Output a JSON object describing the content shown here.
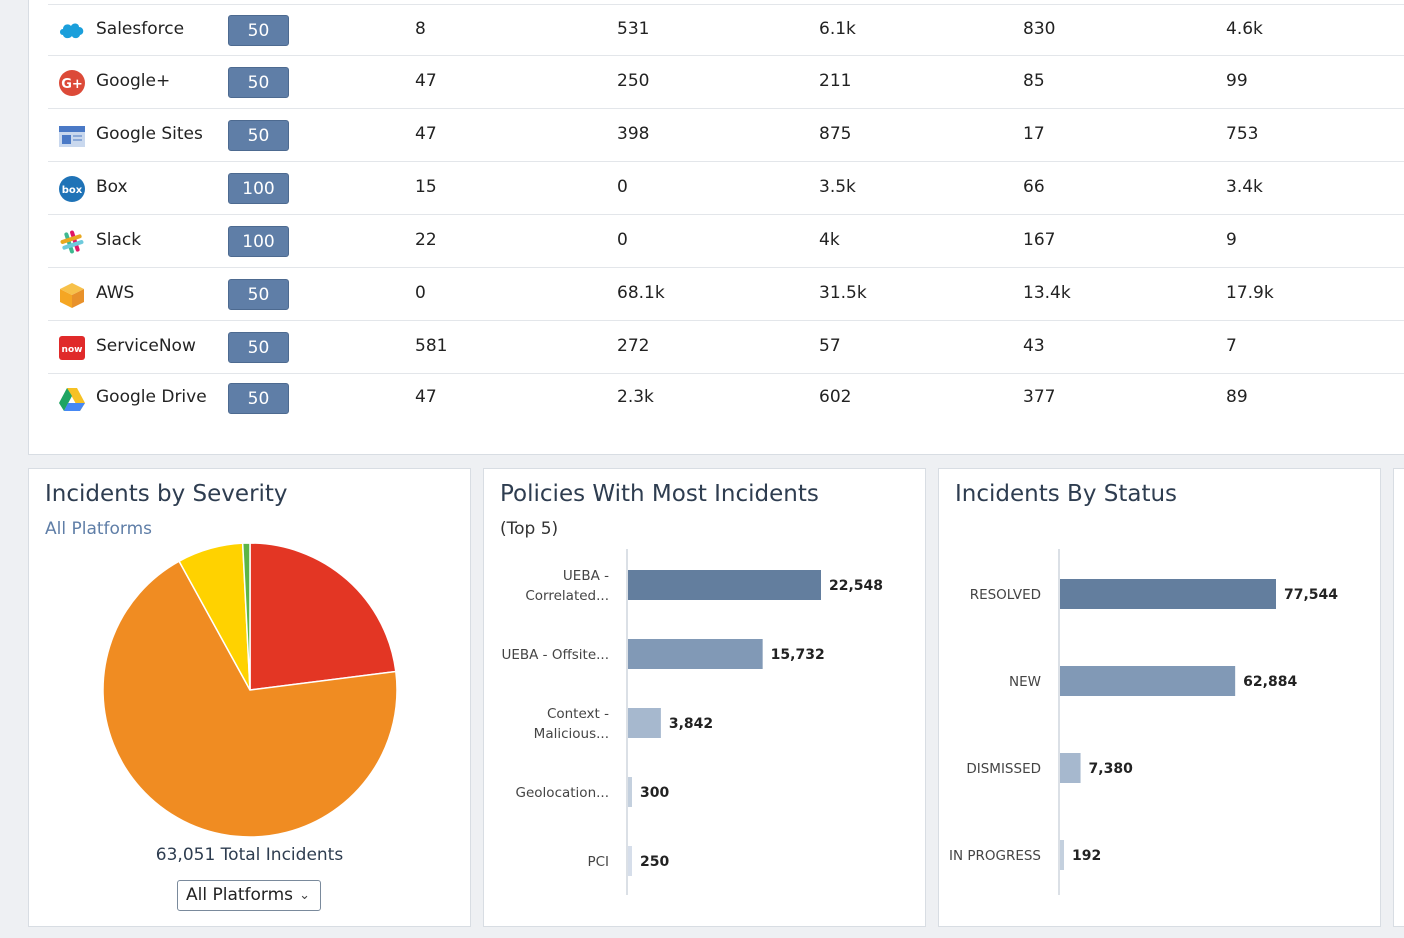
{
  "apps_table": {
    "rows": [
      {
        "name": "Salesforce",
        "severity": "50",
        "c1": "8",
        "c2": "531",
        "c3": "6.1k",
        "c4": "830",
        "c5": "4.6k",
        "icon": "salesforce-icon"
      },
      {
        "name": "Google+",
        "severity": "50",
        "c1": "47",
        "c2": "250",
        "c3": "211",
        "c4": "85",
        "c5": "99",
        "icon": "google-plus-icon"
      },
      {
        "name": "Google Sites",
        "severity": "50",
        "c1": "47",
        "c2": "398",
        "c3": "875",
        "c4": "17",
        "c5": "753",
        "icon": "google-sites-icon"
      },
      {
        "name": "Box",
        "severity": "100",
        "c1": "15",
        "c2": "0",
        "c3": "3.5k",
        "c4": "66",
        "c5": "3.4k",
        "icon": "box-icon"
      },
      {
        "name": "Slack",
        "severity": "100",
        "c1": "22",
        "c2": "0",
        "c3": "4k",
        "c4": "167",
        "c5": "9",
        "icon": "slack-icon"
      },
      {
        "name": "AWS",
        "severity": "50",
        "c1": "0",
        "c2": "68.1k",
        "c3": "31.5k",
        "c4": "13.4k",
        "c5": "17.9k",
        "icon": "aws-icon"
      },
      {
        "name": "ServiceNow",
        "severity": "50",
        "c1": "581",
        "c2": "272",
        "c3": "57",
        "c4": "43",
        "c5": "7",
        "icon": "servicenow-icon"
      },
      {
        "name": "Google Drive",
        "severity": "50",
        "c1": "47",
        "c2": "2.3k",
        "c3": "602",
        "c4": "377",
        "c5": "89",
        "icon": "google-drive-icon"
      }
    ]
  },
  "severity_card": {
    "title": "Incidents by Severity",
    "subtitle": "All Platforms",
    "total_label": "63,051 Total Incidents",
    "platform_select": "All Platforms"
  },
  "policies_card": {
    "title": "Policies With Most Incidents",
    "subtitle": "(Top 5)"
  },
  "status_card": {
    "title": "Incidents By Status"
  },
  "colors": {
    "accent": "#5f7ea7",
    "critical": "#e33624",
    "high": "#f08c22",
    "medium": "#ffd200",
    "low": "#5db546"
  },
  "chart_data": [
    {
      "type": "pie",
      "title": "Incidents by Severity",
      "slices": [
        {
          "value": 14500,
          "color": "#e33624"
        },
        {
          "value": 43500,
          "color": "#f08c22"
        },
        {
          "value": 4550,
          "color": "#ffd200"
        },
        {
          "value": 500,
          "color": "#5db546"
        }
      ]
    },
    {
      "type": "bar",
      "title": "Policies With Most Incidents",
      "orientation": "horizontal",
      "categories": [
        [
          "UEBA -",
          "Correlated..."
        ],
        [
          "UEBA - Offsite..."
        ],
        [
          "Context -",
          "Malicious..."
        ],
        [
          "Geolocation..."
        ],
        [
          "PCI"
        ]
      ],
      "values": [
        22548,
        15732,
        3842,
        300,
        250
      ],
      "labels": [
        "22,548",
        "15,732",
        "3,842",
        "300",
        "250"
      ],
      "colors": [
        "#637e9e",
        "#8199b6",
        "#a6b8ce",
        "#c4d0de",
        "#d6deea"
      ],
      "xlim": [
        0,
        22548
      ]
    },
    {
      "type": "bar",
      "title": "Incidents By Status",
      "orientation": "horizontal",
      "categories": [
        [
          "RESOLVED"
        ],
        [
          "NEW"
        ],
        [
          "DISMISSED"
        ],
        [
          "IN PROGRESS"
        ]
      ],
      "values": [
        77544,
        62884,
        7380,
        192
      ],
      "labels": [
        "77,544",
        "62,884",
        "7,380",
        "192"
      ],
      "colors": [
        "#637e9e",
        "#8199b6",
        "#a6b8ce",
        "#c4d0de"
      ],
      "xlim": [
        0,
        77544
      ]
    }
  ]
}
